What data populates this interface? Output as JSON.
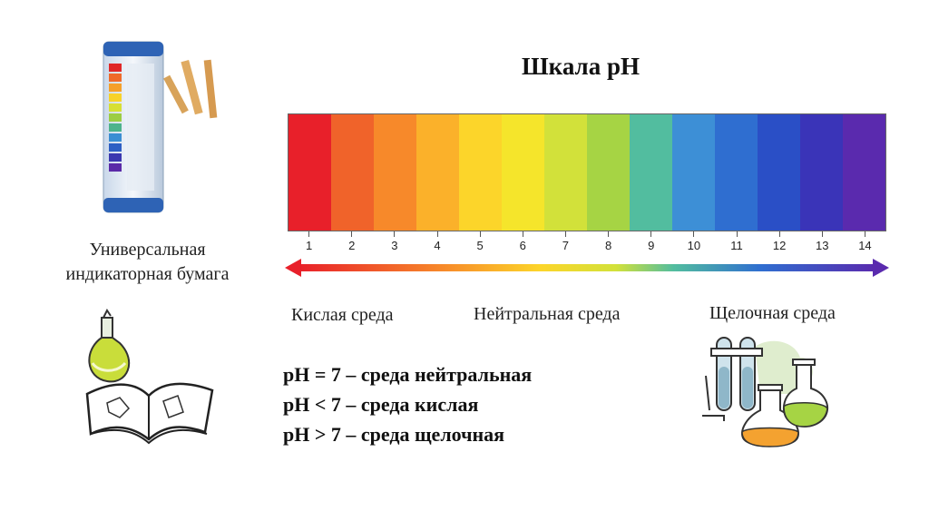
{
  "title": "Шкала pH",
  "ph_scale": {
    "ticks": [
      "1",
      "2",
      "3",
      "4",
      "5",
      "6",
      "7",
      "8",
      "9",
      "10",
      "11",
      "12",
      "13",
      "14"
    ],
    "colors": [
      "#e8202a",
      "#f0632a",
      "#f7892a",
      "#fbb12a",
      "#fcd52a",
      "#f5e52b",
      "#d2e13a",
      "#a6d444",
      "#52bd9f",
      "#3d8fd6",
      "#2f6ed0",
      "#2a4fc6",
      "#3a34b8",
      "#5a2aae"
    ]
  },
  "labels": {
    "acid": "Кислая среда",
    "neutral": "Нейтральная среда",
    "alkaline": "Щелочная среда",
    "paper_line1": "Универсальная",
    "paper_line2": "индикаторная бумага"
  },
  "rules": [
    "pH = 7 – среда нейтральная",
    "pH < 7 – среда кислая",
    "pH > 7 – среда щелочная"
  ],
  "icons": {
    "indicator_paper": "indicator-paper-tube-icon",
    "book_flask": "book-with-flask-icon",
    "lab_glassware": "lab-glassware-icon"
  }
}
